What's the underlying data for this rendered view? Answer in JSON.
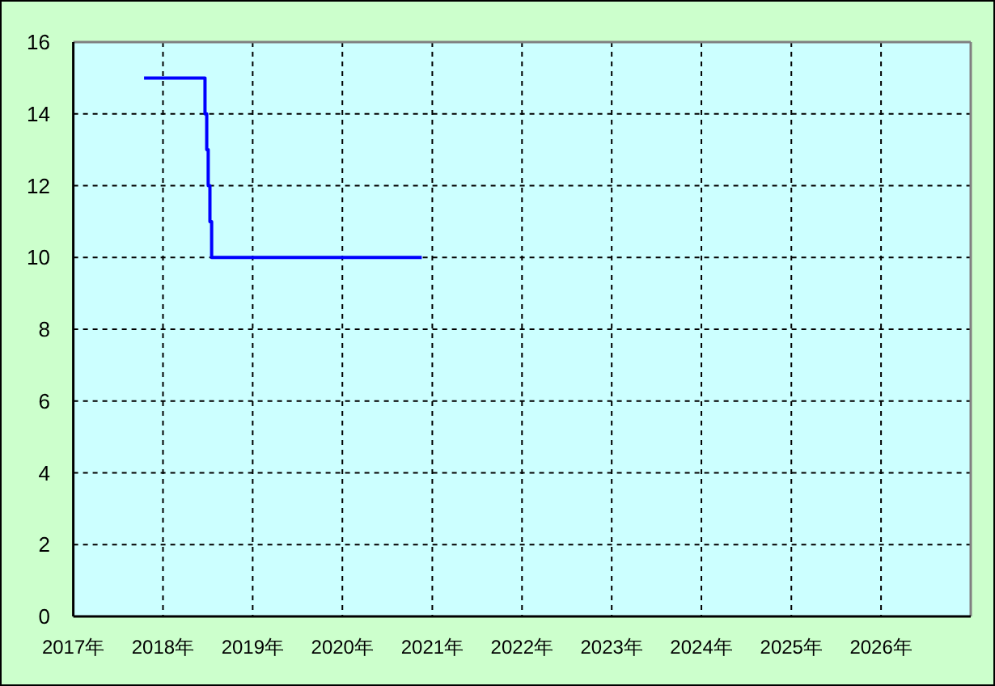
{
  "chart_data": {
    "type": "step",
    "color": "#0000ff",
    "line_style": "solid",
    "grid": true,
    "x": [
      "2017-10-16",
      "2018-06-21",
      "2018-06-28",
      "2018-07-04",
      "2018-07-11",
      "2018-07-18",
      "2020-11-19"
    ],
    "values": [
      15,
      14,
      13,
      12,
      11,
      10,
      10
    ],
    "xlim": [
      "2017",
      "2027"
    ],
    "xticks": [
      {
        "value": "2017",
        "label": "2017年"
      },
      {
        "value": "2018",
        "label": "2018年"
      },
      {
        "value": "2019",
        "label": "2019年"
      },
      {
        "value": "2020",
        "label": "2020年"
      },
      {
        "value": "2021",
        "label": "2021年"
      },
      {
        "value": "2022",
        "label": "2022年"
      },
      {
        "value": "2023",
        "label": "2023年"
      },
      {
        "value": "2024",
        "label": "2024年"
      },
      {
        "value": "2025",
        "label": "2025年"
      },
      {
        "value": "2026",
        "label": "2026年"
      }
    ],
    "ylim": [
      0,
      16
    ],
    "yticks": [
      0,
      2,
      4,
      6,
      8,
      10,
      12,
      14,
      16
    ]
  }
}
